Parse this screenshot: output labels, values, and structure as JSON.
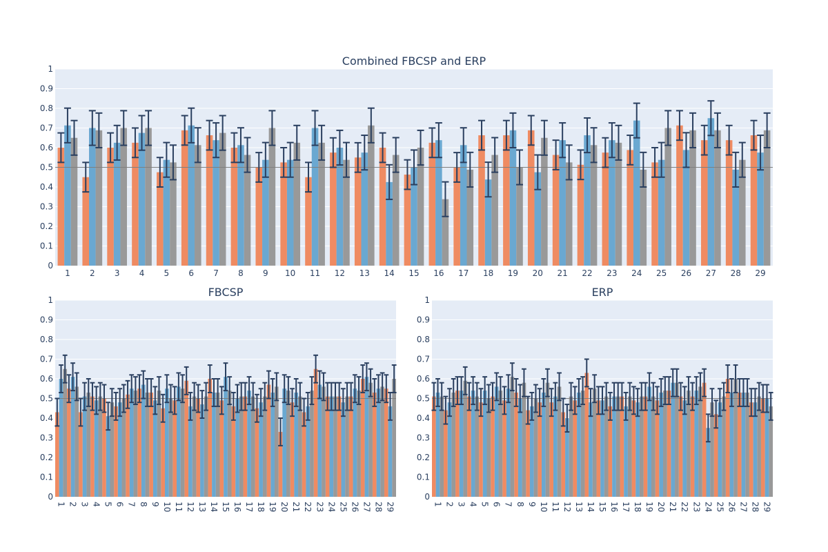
{
  "colors": {
    "series_a": "#ef8b62",
    "series_b": "#6aa8d1",
    "series_c": "#999999",
    "error_bar": "#2a3f5f",
    "plot_bg": "#e5ecf6",
    "grid": "#ffffff",
    "chance_line": "#7f7f7f",
    "text": "#2a3f5f"
  },
  "chart_data": [
    {
      "type": "bar",
      "title": "Combined FBCSP and ERP",
      "ylim": [
        0,
        1
      ],
      "yticks": [
        "0",
        "0.1",
        "0.2",
        "0.3",
        "0.4",
        "0.5",
        "0.6",
        "0.7",
        "0.8",
        "0.9",
        "1"
      ],
      "reference_line": 0.5,
      "grid": true,
      "categories": [
        "1",
        "2",
        "3",
        "4",
        "5",
        "6",
        "7",
        "8",
        "9",
        "10",
        "11",
        "12",
        "13",
        "14",
        "15",
        "16",
        "17",
        "18",
        "19",
        "20",
        "21",
        "22",
        "23",
        "24",
        "25",
        "26",
        "27",
        "28",
        "29"
      ],
      "series": [
        {
          "values": [
            0.6,
            0.45,
            0.6,
            0.625,
            0.475,
            0.688,
            0.663,
            0.6,
            0.5,
            0.525,
            0.45,
            0.575,
            0.55,
            0.6,
            0.463,
            0.625,
            0.5,
            0.663,
            0.663,
            0.688,
            0.563,
            0.513,
            0.575,
            0.588,
            0.525,
            0.713,
            0.638,
            0.638,
            0.663
          ],
          "errors": [
            0.075,
            0.075,
            0.075,
            0.075,
            0.075,
            0.075,
            0.075,
            0.075,
            0.075,
            0.075,
            0.075,
            0.075,
            0.075,
            0.075,
            0.075,
            0.075,
            0.075,
            0.075,
            0.075,
            0.075,
            0.075,
            0.075,
            0.075,
            0.075,
            0.075,
            0.075,
            0.075,
            0.075,
            0.075
          ]
        },
        {
          "values": [
            0.713,
            0.7,
            0.625,
            0.675,
            0.538,
            0.713,
            0.638,
            0.613,
            0.538,
            0.538,
            0.7,
            0.6,
            0.575,
            0.425,
            0.5,
            0.638,
            0.613,
            0.438,
            0.688,
            0.475,
            0.638,
            0.663,
            0.638,
            0.738,
            0.538,
            0.588,
            0.75,
            0.488,
            0.575
          ],
          "errors": [
            0.088,
            0.088,
            0.088,
            0.088,
            0.088,
            0.088,
            0.088,
            0.088,
            0.088,
            0.088,
            0.088,
            0.088,
            0.088,
            0.088,
            0.088,
            0.088,
            0.088,
            0.088,
            0.088,
            0.088,
            0.088,
            0.088,
            0.088,
            0.088,
            0.088,
            0.088,
            0.088,
            0.088,
            0.088
          ]
        },
        {
          "values": [
            0.65,
            0.688,
            0.7,
            0.7,
            0.525,
            0.613,
            0.675,
            0.563,
            0.7,
            0.625,
            0.625,
            0.538,
            0.713,
            0.563,
            0.6,
            0.338,
            0.488,
            0.563,
            0.5,
            0.65,
            0.525,
            0.613,
            0.625,
            0.488,
            0.7,
            0.688,
            0.688,
            0.538,
            0.688
          ],
          "errors": [
            0.088,
            0.088,
            0.088,
            0.088,
            0.088,
            0.088,
            0.088,
            0.088,
            0.088,
            0.088,
            0.088,
            0.088,
            0.088,
            0.088,
            0.088,
            0.088,
            0.088,
            0.088,
            0.088,
            0.088,
            0.088,
            0.088,
            0.088,
            0.088,
            0.088,
            0.088,
            0.088,
            0.088,
            0.088
          ]
        }
      ]
    },
    {
      "type": "bar",
      "title": "FBCSP",
      "ylim": [
        0,
        1
      ],
      "yticks": [
        "0",
        "0.1",
        "0.2",
        "0.3",
        "0.4",
        "0.5",
        "0.6",
        "0.7",
        "0.8",
        "0.9",
        "1"
      ],
      "reference_line": 0.5,
      "grid": true,
      "categories": [
        "1",
        "2",
        "3",
        "4",
        "5",
        "6",
        "7",
        "8",
        "9",
        "10",
        "11",
        "12",
        "13",
        "14",
        "15",
        "16",
        "17",
        "18",
        "19",
        "20",
        "21",
        "22",
        "23",
        "24",
        "25",
        "26",
        "27",
        "28",
        "29"
      ],
      "series": [
        {
          "values": [
            0.43,
            0.55,
            0.43,
            0.51,
            0.5,
            0.46,
            0.52,
            0.55,
            0.53,
            0.45,
            0.49,
            0.59,
            0.5,
            0.6,
            0.49,
            0.46,
            0.51,
            0.45,
            0.57,
            0.33,
            0.48,
            0.43,
            0.65,
            0.51,
            0.51,
            0.51,
            0.6,
            0.53,
            0.55
          ],
          "errors": [
            0.07,
            0.07,
            0.07,
            0.07,
            0.07,
            0.07,
            0.07,
            0.07,
            0.07,
            0.07,
            0.07,
            0.07,
            0.07,
            0.07,
            0.07,
            0.07,
            0.07,
            0.07,
            0.07,
            0.07,
            0.07,
            0.07,
            0.07,
            0.07,
            0.07,
            0.07,
            0.07,
            0.07,
            0.07
          ]
        },
        {
          "values": [
            0.6,
            0.61,
            0.51,
            0.49,
            0.41,
            0.48,
            0.55,
            0.57,
            0.49,
            0.55,
            0.56,
            0.46,
            0.47,
            0.53,
            0.61,
            0.5,
            0.54,
            0.48,
            0.53,
            0.55,
            0.53,
            0.46,
            0.57,
            0.51,
            0.48,
            0.55,
            0.61,
            0.55,
            0.46
          ],
          "errors": [
            0.07,
            0.07,
            0.07,
            0.07,
            0.07,
            0.07,
            0.07,
            0.07,
            0.07,
            0.07,
            0.07,
            0.07,
            0.07,
            0.07,
            0.07,
            0.07,
            0.07,
            0.07,
            0.07,
            0.07,
            0.07,
            0.07,
            0.07,
            0.07,
            0.07,
            0.07,
            0.07,
            0.07,
            0.07
          ]
        },
        {
          "values": [
            0.65,
            0.56,
            0.53,
            0.51,
            0.48,
            0.5,
            0.54,
            0.53,
            0.54,
            0.5,
            0.55,
            0.51,
            0.51,
            0.53,
            0.54,
            0.51,
            0.51,
            0.51,
            0.56,
            0.54,
            0.51,
            0.54,
            0.56,
            0.51,
            0.51,
            0.54,
            0.58,
            0.56,
            0.6
          ],
          "errors": [
            0.07,
            0.07,
            0.07,
            0.07,
            0.07,
            0.07,
            0.07,
            0.07,
            0.07,
            0.07,
            0.07,
            0.07,
            0.07,
            0.07,
            0.07,
            0.07,
            0.07,
            0.07,
            0.07,
            0.07,
            0.07,
            0.07,
            0.07,
            0.07,
            0.07,
            0.07,
            0.07,
            0.07,
            0.07
          ]
        }
      ]
    },
    {
      "type": "bar",
      "title": "ERP",
      "ylim": [
        0,
        1
      ],
      "yticks": [
        "0",
        "0.1",
        "0.2",
        "0.3",
        "0.4",
        "0.5",
        "0.6",
        "0.7",
        "0.8",
        "0.9",
        "1"
      ],
      "reference_line": 0.5,
      "grid": true,
      "categories": [
        "1",
        "2",
        "3",
        "4",
        "5",
        "6",
        "7",
        "8",
        "9",
        "10",
        "11",
        "12",
        "13",
        "14",
        "15",
        "16",
        "17",
        "18",
        "19",
        "20",
        "21",
        "22",
        "23",
        "24",
        "25",
        "26",
        "27",
        "28",
        "29"
      ],
      "series": [
        {
          "values": [
            0.51,
            0.44,
            0.54,
            0.51,
            0.48,
            0.51,
            0.49,
            0.53,
            0.44,
            0.48,
            0.48,
            0.43,
            0.49,
            0.63,
            0.49,
            0.46,
            0.51,
            0.49,
            0.51,
            0.49,
            0.54,
            0.51,
            0.51,
            0.58,
            0.42,
            0.6,
            0.53,
            0.48,
            0.5
          ],
          "errors": [
            0.07,
            0.07,
            0.07,
            0.07,
            0.07,
            0.07,
            0.07,
            0.07,
            0.07,
            0.07,
            0.07,
            0.07,
            0.07,
            0.07,
            0.07,
            0.07,
            0.07,
            0.07,
            0.07,
            0.07,
            0.07,
            0.07,
            0.07,
            0.07,
            0.07,
            0.07,
            0.07,
            0.07,
            0.07
          ]
        },
        {
          "values": [
            0.53,
            0.48,
            0.54,
            0.54,
            0.54,
            0.56,
            0.55,
            0.5,
            0.46,
            0.53,
            0.51,
            0.4,
            0.53,
            0.48,
            0.49,
            0.51,
            0.46,
            0.48,
            0.56,
            0.53,
            0.58,
            0.49,
            0.54,
            0.35,
            0.48,
            0.53,
            0.53,
            0.48,
            0.5
          ],
          "errors": [
            0.07,
            0.07,
            0.07,
            0.07,
            0.07,
            0.07,
            0.07,
            0.07,
            0.07,
            0.07,
            0.07,
            0.07,
            0.07,
            0.07,
            0.07,
            0.07,
            0.07,
            0.07,
            0.07,
            0.07,
            0.07,
            0.07,
            0.07,
            0.07,
            0.07,
            0.07,
            0.07,
            0.07,
            0.07
          ]
        },
        {
          "values": [
            0.51,
            0.53,
            0.59,
            0.51,
            0.5,
            0.54,
            0.61,
            0.58,
            0.5,
            0.58,
            0.56,
            0.51,
            0.54,
            0.55,
            0.51,
            0.51,
            0.51,
            0.51,
            0.51,
            0.54,
            0.58,
            0.54,
            0.56,
            0.48,
            0.51,
            0.6,
            0.53,
            0.51,
            0.46
          ],
          "errors": [
            0.07,
            0.07,
            0.07,
            0.07,
            0.07,
            0.07,
            0.07,
            0.07,
            0.07,
            0.07,
            0.07,
            0.07,
            0.07,
            0.07,
            0.07,
            0.07,
            0.07,
            0.07,
            0.07,
            0.07,
            0.07,
            0.07,
            0.07,
            0.07,
            0.07,
            0.07,
            0.07,
            0.07,
            0.07
          ]
        }
      ]
    }
  ]
}
